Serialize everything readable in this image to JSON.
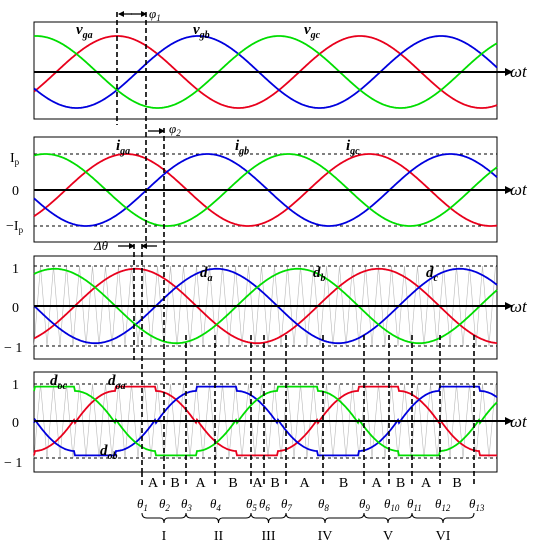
{
  "colors": {
    "phase_a": "#e8001c",
    "phase_b": "#0000dd",
    "phase_c": "#00dd00",
    "axis": "#000000",
    "carrier": "#b8b8b8",
    "pink": "#f08080"
  },
  "axis_label": "ωt",
  "panel1": {
    "labels": [
      {
        "key": "ga",
        "main": "v",
        "sub": "ga"
      },
      {
        "key": "gb",
        "main": "v",
        "sub": "gb"
      },
      {
        "key": "gc",
        "main": "v",
        "sub": "gc"
      }
    ],
    "phi": {
      "main": "φ",
      "sub": "1"
    }
  },
  "panel2": {
    "labels": [
      {
        "key": "ga",
        "main": "i",
        "sub": "ga"
      },
      {
        "key": "gb",
        "main": "i",
        "sub": "gb"
      },
      {
        "key": "gc",
        "main": "i",
        "sub": "gc"
      }
    ],
    "phi": {
      "main": "φ",
      "sub": "2"
    },
    "ticks": {
      "ip": "I",
      "ip_sub": "p",
      "zero": "0",
      "neg_ip": "−I",
      "neg_ip_sub": "p"
    }
  },
  "panel3": {
    "labels": [
      {
        "key": "a",
        "main": "d",
        "sub": "a"
      },
      {
        "key": "b",
        "main": "d",
        "sub": "b"
      },
      {
        "key": "c",
        "main": "d",
        "sub": "c"
      }
    ],
    "delta": "Δθ",
    "ticks": {
      "one": "1",
      "zero": "0",
      "neg_one": "− 1"
    }
  },
  "panel4": {
    "labels": [
      {
        "key": "oc",
        "main": "d",
        "sub": "oc"
      },
      {
        "key": "oa",
        "main": "d",
        "sub": "oa"
      },
      {
        "key": "ob",
        "main": "d",
        "sub": "ob"
      }
    ],
    "ticks": {
      "one": "1",
      "zero": "0",
      "neg_one": "− 1"
    },
    "segment_letters": [
      "A",
      "B",
      "A",
      "B",
      "A",
      "B",
      "A",
      "B",
      "A",
      "B",
      "A",
      "B"
    ]
  },
  "thetas": [
    "1",
    "2",
    "3",
    "4",
    "5",
    "6",
    "7",
    "8",
    "9",
    "10",
    "11",
    "12",
    "13"
  ],
  "sectors": [
    "I",
    "II",
    "III",
    "IV",
    "V",
    "VI"
  ]
}
